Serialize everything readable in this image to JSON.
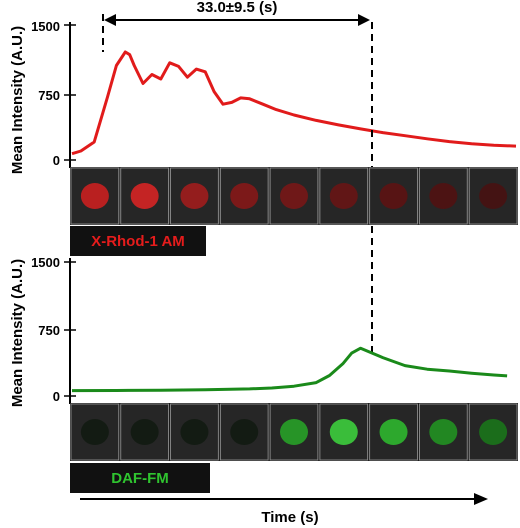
{
  "chart_data": [
    {
      "type": "line",
      "ylabel": "Mean Intensity (A.U.)",
      "ylim": [
        0,
        1500
      ],
      "yticks": [
        "0",
        "750",
        "1500"
      ],
      "xlim": [
        0,
        100
      ],
      "series": [
        {
          "name": "X-Rhod-1 AM",
          "color": "#e11b1b",
          "x": [
            0,
            2,
            5,
            8,
            10,
            12,
            13,
            14,
            16,
            18,
            20,
            22,
            24,
            26,
            28,
            30,
            32,
            34,
            36,
            38,
            40,
            43,
            46,
            50,
            55,
            60,
            65,
            70,
            75,
            80,
            85,
            90,
            95,
            100
          ],
          "y": [
            70,
            100,
            200,
            700,
            1050,
            1200,
            1170,
            1050,
            850,
            950,
            900,
            1080,
            1040,
            920,
            1010,
            980,
            760,
            620,
            640,
            690,
            680,
            620,
            560,
            500,
            440,
            390,
            345,
            305,
            270,
            235,
            205,
            180,
            165,
            155
          ]
        }
      ],
      "annotation": "33.0±9.5 (s)"
    },
    {
      "type": "line",
      "ylabel": "Mean Intensity (A.U.)",
      "ylim": [
        0,
        1500
      ],
      "yticks": [
        "0",
        "750",
        "1500"
      ],
      "xlabel": "Time (s)",
      "xlim": [
        0,
        100
      ],
      "series": [
        {
          "name": "DAF-FM",
          "color": "#1a8a1a",
          "x": [
            0,
            10,
            20,
            30,
            40,
            45,
            50,
            55,
            58,
            61,
            63,
            65,
            70,
            75,
            80,
            85,
            90,
            95,
            98
          ],
          "y": [
            60,
            62,
            65,
            70,
            80,
            90,
            110,
            150,
            230,
            360,
            480,
            535,
            430,
            340,
            300,
            280,
            255,
            235,
            225
          ]
        }
      ]
    }
  ],
  "panels": {
    "top_label": "X-Rhod-1 AM",
    "bottom_label": "DAF-FM"
  },
  "colors": {
    "red_frames": [
      "#d42020",
      "#e02424",
      "#a81c1c",
      "#8c1818",
      "#7c1616",
      "#6c1414",
      "#601212",
      "#541010",
      "#4a1010"
    ],
    "green_frames": [
      "#101a10",
      "#101a10",
      "#101a10",
      "#101a10",
      "#28a828",
      "#3ed83e",
      "#2fbf2f",
      "#229922",
      "#1a7a1a"
    ]
  }
}
